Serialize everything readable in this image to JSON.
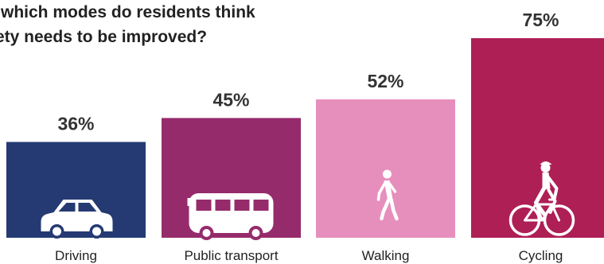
{
  "chart_data": {
    "type": "bar",
    "title_lines": [
      "r which modes do residents think",
      "fety needs to be improved?"
    ],
    "categories": [
      "Driving",
      "Public transport",
      "Walking",
      "Cycling"
    ],
    "values": [
      36,
      45,
      52,
      75
    ],
    "value_labels": [
      "36%",
      "45%",
      "52%",
      "75%"
    ],
    "icons": [
      "car-icon",
      "bus-icon",
      "walking-person-icon",
      "cyclist-icon"
    ],
    "colors": [
      "#253a73",
      "#962b6c",
      "#e68fbd",
      "#ae1f56"
    ],
    "ylim": [
      0,
      75
    ],
    "grid": false,
    "legend": "none"
  }
}
